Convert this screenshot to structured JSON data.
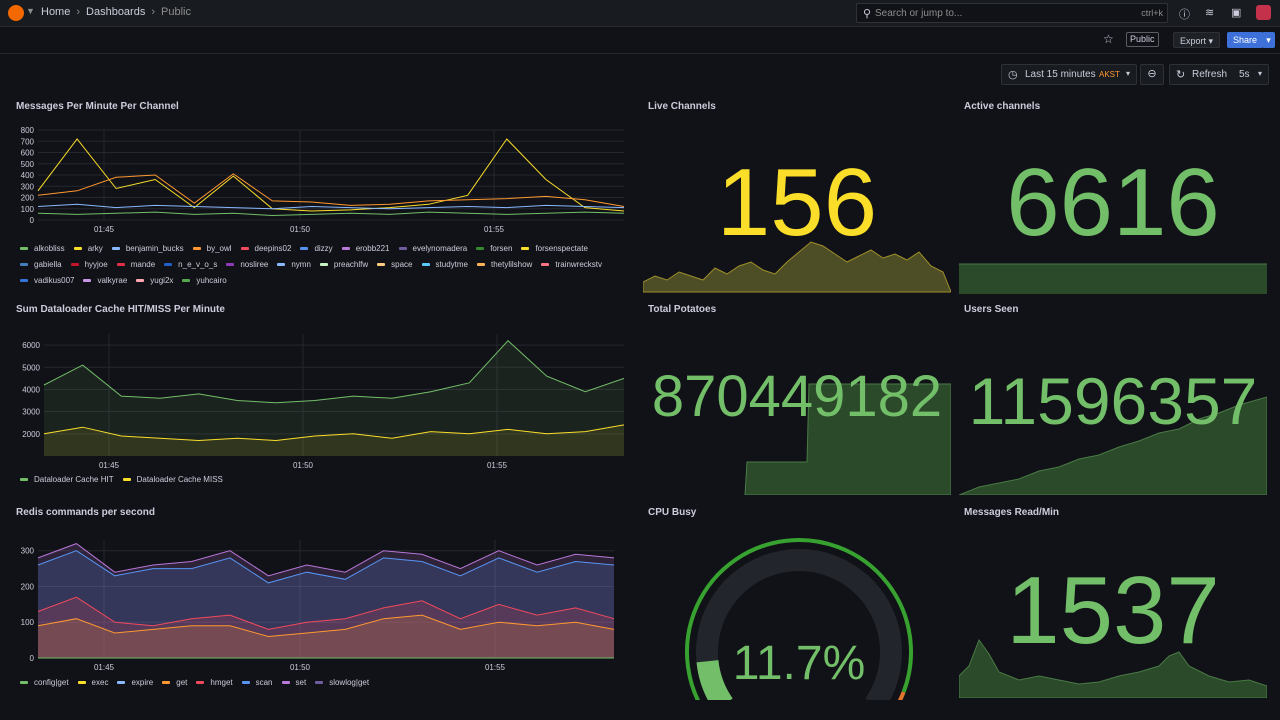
{
  "nav": {
    "breadcrumbs": [
      "Home",
      "Dashboards",
      "Public"
    ],
    "search_placeholder": "Search or jump to...",
    "search_shortcut": "ctrl+k"
  },
  "toolbar": {
    "public_tag": "Public",
    "export_label": "Export",
    "share_label": "Share"
  },
  "time": {
    "range_label": "Last 15 minutes",
    "timezone": "AKST",
    "refresh_label": "Refresh",
    "refresh_interval": "5s"
  },
  "colors": {
    "green": "#73bf69",
    "yellow": "#fade2a",
    "blue": "#5794f2",
    "orange": "#ff9830",
    "red": "#f2495c",
    "purple": "#b877d9"
  },
  "panels": {
    "messages": {
      "title": "Messages Per Minute Per Channel",
      "yticks": [
        "0",
        "100",
        "200",
        "300",
        "400",
        "500",
        "600",
        "700",
        "800"
      ],
      "xticks": [
        "01:45",
        "01:50",
        "01:55"
      ],
      "legend": [
        {
          "name": "alkobliss",
          "color": "#73bf69"
        },
        {
          "name": "arky",
          "color": "#fade2a"
        },
        {
          "name": "benjamin_bucks",
          "color": "#8ab8ff"
        },
        {
          "name": "by_owl",
          "color": "#ff9830"
        },
        {
          "name": "deepins02",
          "color": "#f2495c"
        },
        {
          "name": "dizzy",
          "color": "#5794f2"
        },
        {
          "name": "erobb221",
          "color": "#b877d9"
        },
        {
          "name": "evelynomadera",
          "color": "#705da0"
        },
        {
          "name": "forsen",
          "color": "#37872d"
        },
        {
          "name": "forsenspectate",
          "color": "#fade2a"
        },
        {
          "name": "gabiella",
          "color": "#447ebc"
        },
        {
          "name": "hyyjoe",
          "color": "#c4162a"
        },
        {
          "name": "mande",
          "color": "#e02f44"
        },
        {
          "name": "n_e_v_o_s",
          "color": "#1f60c4"
        },
        {
          "name": "nosliree",
          "color": "#8f3bb8"
        },
        {
          "name": "nymn",
          "color": "#8ab8ff"
        },
        {
          "name": "preachlfw",
          "color": "#c8f2c2"
        },
        {
          "name": "space",
          "color": "#ffcb7d"
        },
        {
          "name": "studytme",
          "color": "#5ac8fa"
        },
        {
          "name": "thetylilshow",
          "color": "#ffb357"
        },
        {
          "name": "trainwreckstv",
          "color": "#ff7383"
        },
        {
          "name": "vadikus007",
          "color": "#3274d9"
        },
        {
          "name": "valkyrae",
          "color": "#ca95e5"
        },
        {
          "name": "yugi2x",
          "color": "#ffa6b0"
        },
        {
          "name": "yuhcairo",
          "color": "#56a64b"
        }
      ]
    },
    "cache": {
      "title": "Sum Dataloader Cache HIT/MISS Per Minute",
      "yticks": [
        "2000",
        "3000",
        "4000",
        "5000",
        "6000"
      ],
      "xticks": [
        "01:45",
        "01:50",
        "01:55"
      ],
      "legend": [
        {
          "name": "Dataloader Cache HIT",
          "color": "#73bf69"
        },
        {
          "name": "Dataloader Cache MISS",
          "color": "#fade2a"
        }
      ]
    },
    "redis": {
      "title": "Redis commands per second",
      "yticks": [
        "0",
        "100",
        "200",
        "300"
      ],
      "xticks": [
        "01:45",
        "01:50",
        "01:55"
      ],
      "legend": [
        {
          "name": "config|get",
          "color": "#73bf69"
        },
        {
          "name": "exec",
          "color": "#fade2a"
        },
        {
          "name": "expire",
          "color": "#8ab8ff"
        },
        {
          "name": "get",
          "color": "#ff9830"
        },
        {
          "name": "hmget",
          "color": "#f2495c"
        },
        {
          "name": "scan",
          "color": "#5794f2"
        },
        {
          "name": "set",
          "color": "#b877d9"
        },
        {
          "name": "slowlog|get",
          "color": "#705da0"
        }
      ]
    },
    "live_channels": {
      "title": "Live Channels",
      "value": "156",
      "color": "#fade2a"
    },
    "active_channels": {
      "title": "Active channels",
      "value": "6616",
      "color": "#73bf69"
    },
    "total_potatoes": {
      "title": "Total Potatoes",
      "value": "870449182",
      "color": "#73bf69"
    },
    "users_seen": {
      "title": "Users Seen",
      "value": "11596357",
      "color": "#73bf69"
    },
    "cpu_busy": {
      "title": "CPU Busy",
      "value": "11.7%",
      "fraction": 0.117,
      "color": "#73bf69"
    },
    "messages_read": {
      "title": "Messages Read/Min",
      "value": "1537",
      "color": "#73bf69"
    }
  },
  "chart_data": [
    {
      "type": "line",
      "title": "Messages Per Minute Per Channel",
      "x": [
        "01:42",
        "01:43",
        "01:44",
        "01:45",
        "01:46",
        "01:47",
        "01:48",
        "01:49",
        "01:50",
        "01:51",
        "01:52",
        "01:53",
        "01:54",
        "01:55",
        "01:56",
        "01:57"
      ],
      "ylim": [
        0,
        800
      ],
      "series": [
        {
          "name": "forsenspectate",
          "values": [
            260,
            720,
            280,
            360,
            110,
            390,
            100,
            80,
            90,
            110,
            140,
            220,
            720,
            360,
            110,
            80
          ]
        },
        {
          "name": "by_owl",
          "values": [
            220,
            260,
            380,
            400,
            150,
            410,
            170,
            160,
            130,
            140,
            170,
            180,
            190,
            210,
            180,
            120
          ]
        },
        {
          "name": "benjamin_bucks",
          "values": [
            120,
            140,
            110,
            130,
            120,
            110,
            100,
            120,
            110,
            100,
            110,
            120,
            110,
            130,
            120,
            110
          ]
        },
        {
          "name": "alkobliss",
          "values": [
            60,
            50,
            60,
            70,
            50,
            60,
            40,
            50,
            60,
            50,
            70,
            60,
            50,
            60,
            70,
            60
          ]
        }
      ]
    },
    {
      "type": "area",
      "title": "Sum Dataloader Cache HIT/MISS Per Minute",
      "x": [
        "01:42",
        "01:43",
        "01:44",
        "01:45",
        "01:46",
        "01:47",
        "01:48",
        "01:49",
        "01:50",
        "01:51",
        "01:52",
        "01:53",
        "01:54",
        "01:55",
        "01:56",
        "01:57"
      ],
      "ylim": [
        1000,
        6500
      ],
      "series": [
        {
          "name": "Dataloader Cache HIT",
          "values": [
            4200,
            5100,
            3700,
            3600,
            3800,
            3500,
            3400,
            3500,
            3700,
            3600,
            3900,
            4300,
            6200,
            4600,
            3900,
            4500
          ]
        },
        {
          "name": "Dataloader Cache MISS",
          "values": [
            2000,
            2300,
            1900,
            1800,
            1700,
            1800,
            1700,
            1900,
            2000,
            1800,
            2100,
            2000,
            2200,
            2000,
            2100,
            2400
          ]
        }
      ]
    },
    {
      "type": "area",
      "title": "Redis commands per second",
      "x": [
        "01:42",
        "01:43",
        "01:44",
        "01:45",
        "01:46",
        "01:47",
        "01:48",
        "01:49",
        "01:50",
        "01:51",
        "01:52",
        "01:53",
        "01:54",
        "01:55",
        "01:56",
        "01:57"
      ],
      "ylim": [
        0,
        330
      ],
      "series": [
        {
          "name": "set",
          "values": [
            280,
            320,
            240,
            260,
            270,
            300,
            230,
            260,
            240,
            300,
            290,
            250,
            300,
            260,
            290,
            280
          ]
        },
        {
          "name": "scan",
          "values": [
            260,
            300,
            230,
            250,
            250,
            280,
            210,
            240,
            220,
            280,
            270,
            230,
            280,
            240,
            270,
            260
          ]
        },
        {
          "name": "hmget",
          "values": [
            130,
            170,
            100,
            90,
            110,
            120,
            80,
            100,
            110,
            140,
            160,
            110,
            150,
            120,
            140,
            110
          ]
        },
        {
          "name": "get",
          "values": [
            90,
            110,
            70,
            80,
            90,
            90,
            60,
            70,
            80,
            110,
            120,
            80,
            100,
            90,
            100,
            80
          ]
        },
        {
          "name": "config|get",
          "values": [
            0,
            0,
            0,
            0,
            0,
            0,
            0,
            0,
            0,
            0,
            0,
            0,
            0,
            0,
            0,
            0
          ]
        }
      ]
    }
  ]
}
